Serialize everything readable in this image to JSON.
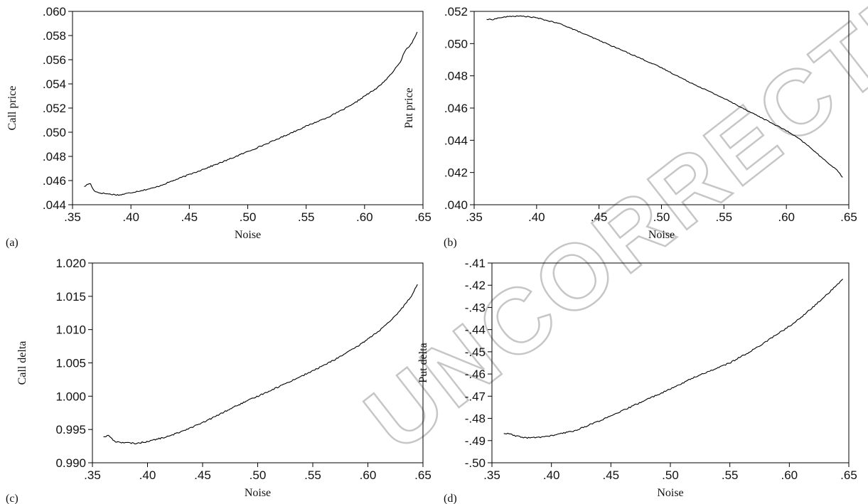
{
  "watermark": "UNCORRECTED PROOFS",
  "chart_data": [
    {
      "type": "line",
      "panel_label": "(a)",
      "xlabel": "Noise",
      "ylabel": "Call price",
      "xlim": [
        0.35,
        0.65
      ],
      "ylim": [
        0.044,
        0.06
      ],
      "xticks": [
        ".35",
        ".40",
        ".45",
        ".50",
        ".55",
        ".60",
        ".65"
      ],
      "yticks": [
        ".044",
        ".046",
        ".048",
        ".050",
        ".052",
        ".054",
        ".056",
        ".058",
        ".060"
      ],
      "noise": 5e-05,
      "x": [
        0.36,
        0.365,
        0.368,
        0.372,
        0.38,
        0.39,
        0.4,
        0.42,
        0.45,
        0.48,
        0.5,
        0.52,
        0.55,
        0.57,
        0.59,
        0.6,
        0.61,
        0.62,
        0.63,
        0.635,
        0.64,
        0.645
      ],
      "values": [
        0.0455,
        0.0458,
        0.0452,
        0.045,
        0.0449,
        0.0448,
        0.045,
        0.0454,
        0.0465,
        0.0476,
        0.0484,
        0.0492,
        0.0505,
        0.0513,
        0.0523,
        0.053,
        0.0536,
        0.0545,
        0.0557,
        0.0568,
        0.0573,
        0.0583
      ]
    },
    {
      "type": "line",
      "panel_label": "(b)",
      "xlabel": "Noise",
      "ylabel": "Put price",
      "xlim": [
        0.35,
        0.65
      ],
      "ylim": [
        0.04,
        0.052
      ],
      "xticks": [
        ".35",
        ".40",
        ".45",
        ".50",
        ".55",
        ".60",
        ".65"
      ],
      "yticks": [
        ".040",
        ".042",
        ".044",
        ".046",
        ".048",
        ".050",
        ".052"
      ],
      "noise": 3e-05,
      "x": [
        0.36,
        0.365,
        0.37,
        0.38,
        0.39,
        0.4,
        0.42,
        0.45,
        0.48,
        0.5,
        0.52,
        0.55,
        0.58,
        0.6,
        0.61,
        0.62,
        0.63,
        0.64,
        0.645
      ],
      "values": [
        0.0515,
        0.0515,
        0.0516,
        0.0517,
        0.0517,
        0.0516,
        0.0512,
        0.0502,
        0.0492,
        0.0485,
        0.0477,
        0.0466,
        0.0454,
        0.0446,
        0.0441,
        0.0435,
        0.0428,
        0.0422,
        0.0417
      ]
    },
    {
      "type": "line",
      "panel_label": "(c)",
      "xlabel": "Noise",
      "ylabel": "Call delta",
      "xlim": [
        0.35,
        0.65
      ],
      "ylim": [
        0.99,
        1.02
      ],
      "xticks": [
        ".35",
        ".40",
        ".45",
        ".50",
        ".55",
        ".60",
        ".65"
      ],
      "yticks": [
        "0.990",
        "0.995",
        "1.000",
        "1.005",
        "1.010",
        "1.015",
        "1.020"
      ],
      "noise": 0.0001,
      "x": [
        0.36,
        0.365,
        0.37,
        0.38,
        0.39,
        0.4,
        0.42,
        0.45,
        0.48,
        0.5,
        0.52,
        0.55,
        0.57,
        0.59,
        0.6,
        0.61,
        0.62,
        0.63,
        0.64,
        0.645
      ],
      "values": [
        0.9939,
        0.9941,
        0.9932,
        0.993,
        0.9929,
        0.9932,
        0.994,
        0.996,
        0.9985,
        1.0,
        1.0015,
        1.0038,
        1.0055,
        1.0074,
        1.0086,
        1.0098,
        1.0112,
        1.013,
        1.0152,
        1.0168
      ]
    },
    {
      "type": "line",
      "panel_label": "(d)",
      "xlabel": "Noise",
      "ylabel": "Put delta",
      "xlim": [
        0.35,
        0.65
      ],
      "ylim": [
        -0.5,
        -0.41
      ],
      "xticks": [
        ".35",
        ".40",
        ".45",
        ".50",
        ".55",
        ".60",
        ".65"
      ],
      "yticks": [
        "-.50",
        "-.49",
        "-.48",
        "-.47",
        "-.46",
        "-.45",
        "-.44",
        "-.43",
        "-.42",
        "-.41"
      ],
      "noise": 0.0003,
      "x": [
        0.36,
        0.365,
        0.37,
        0.38,
        0.39,
        0.4,
        0.42,
        0.45,
        0.48,
        0.5,
        0.52,
        0.55,
        0.57,
        0.59,
        0.6,
        0.61,
        0.62,
        0.63,
        0.64,
        0.645
      ],
      "values": [
        -0.4868,
        -0.487,
        -0.488,
        -0.4888,
        -0.4885,
        -0.4878,
        -0.4855,
        -0.479,
        -0.4715,
        -0.4668,
        -0.4615,
        -0.455,
        -0.449,
        -0.442,
        -0.4385,
        -0.4345,
        -0.4298,
        -0.425,
        -0.42,
        -0.4172
      ]
    }
  ]
}
